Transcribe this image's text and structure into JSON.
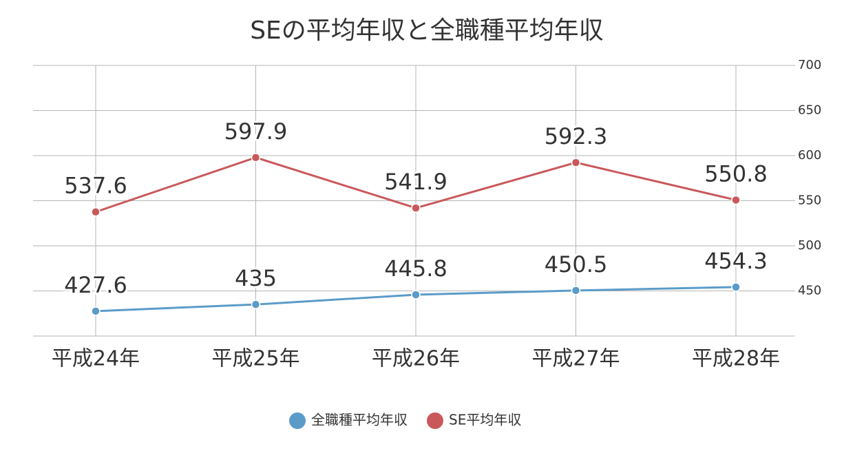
{
  "chart_data": {
    "type": "line",
    "title": "SEの平均年収と全職種平均年収",
    "categories": [
      "平成24年",
      "平成25年",
      "平成26年",
      "平成27年",
      "平成28年"
    ],
    "series": [
      {
        "name": "全職種平均年収",
        "color": "#5b9bc9",
        "values": [
          427.6,
          435,
          445.8,
          450.5,
          454.3
        ]
      },
      {
        "name": "SE平均年収",
        "color": "#c9585b",
        "values": [
          537.6,
          597.9,
          541.9,
          592.3,
          550.8
        ]
      }
    ],
    "ylim": [
      400,
      700
    ],
    "yticks": [
      450,
      500,
      550,
      600,
      650,
      700
    ],
    "grid": true,
    "legend": "bottom"
  }
}
